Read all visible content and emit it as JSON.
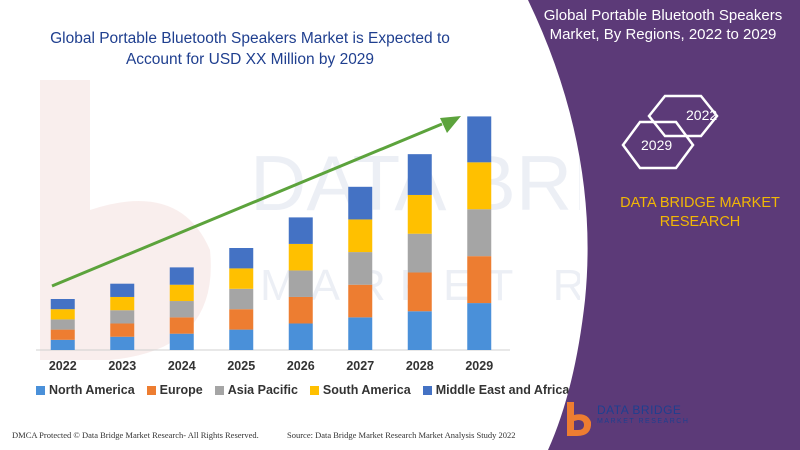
{
  "watermark": {
    "text": "DATA BRIDGE",
    "subtext": "MARKET RESEARCH"
  },
  "chart_data": {
    "type": "bar",
    "stacked": true,
    "title": "Global Portable Bluetooth Speakers Market is Expected to Account for USD XX Million by 2029",
    "categories": [
      "2022",
      "2023",
      "2024",
      "2025",
      "2026",
      "2027",
      "2028",
      "2029"
    ],
    "series": [
      {
        "name": "North America",
        "color": "#4a90d9",
        "values": [
          10,
          13,
          16,
          20,
          26,
          32,
          38,
          46
        ]
      },
      {
        "name": "Europe",
        "color": "#ed7d31",
        "values": [
          10,
          13,
          16,
          20,
          26,
          32,
          38,
          46
        ]
      },
      {
        "name": "Asia Pacific",
        "color": "#a5a5a5",
        "values": [
          10,
          13,
          16,
          20,
          26,
          32,
          38,
          46
        ]
      },
      {
        "name": "South America",
        "color": "#ffc000",
        "values": [
          10,
          13,
          16,
          20,
          26,
          32,
          38,
          46
        ]
      },
      {
        "name": "Middle East and Africa",
        "color": "#4472c4",
        "values": [
          10,
          13,
          17,
          20,
          26,
          32,
          40,
          45
        ]
      }
    ],
    "trend_arrow": true,
    "trend_color": "#5ca33c",
    "legend_position": "bottom",
    "grid": false
  },
  "right_panel": {
    "title": "Global Portable Bluetooth Speakers Market, By Regions, 2022 to 2029",
    "hex_labels": [
      "2022",
      "2029"
    ],
    "company": "DATA BRIDGE MARKET RESEARCH",
    "background_color": "#5c3a78",
    "accent_color": "#f2b705"
  },
  "logo": {
    "name": "DATA BRIDGE",
    "tagline": "MARKET RESEARCH"
  },
  "footer": {
    "left": "DMCA Protected © Data Bridge Market Research- All Rights Reserved.",
    "right": "Source: Data Bridge Market Research Market Analysis Study 2022"
  }
}
